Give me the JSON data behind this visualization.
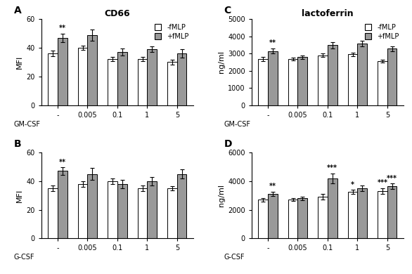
{
  "panel_A": {
    "title": "CD66",
    "ylabel": "MFI",
    "xlabel": "GM-CSF",
    "xlabels": [
      "-",
      "0.005",
      "0.1",
      "1",
      "5"
    ],
    "minus_fMLP": [
      36,
      40,
      32,
      32,
      30
    ],
    "plus_fMLP": [
      47,
      49,
      37,
      39,
      36
    ],
    "minus_err": [
      2,
      1.5,
      1.5,
      1.5,
      1.5
    ],
    "plus_err": [
      3,
      4,
      2.5,
      2,
      3
    ],
    "ylim": [
      0,
      60
    ],
    "yticks": [
      0,
      20,
      40,
      60
    ],
    "sig_plus": [
      "**",
      "",
      "",
      "",
      ""
    ],
    "sig_minus": [
      "",
      "",
      "",
      "",
      ""
    ],
    "panel_label": "A"
  },
  "panel_B": {
    "title": "",
    "ylabel": "MFI",
    "xlabel": "G-CSF",
    "xlabels": [
      "-",
      "0.005",
      "0.1",
      "1",
      "5"
    ],
    "minus_fMLP": [
      35,
      38,
      40,
      35,
      35
    ],
    "plus_fMLP": [
      47,
      45,
      38,
      40,
      45
    ],
    "minus_err": [
      2,
      2,
      2,
      2,
      1.5
    ],
    "plus_err": [
      2.5,
      4,
      3,
      3,
      3
    ],
    "ylim": [
      0,
      60
    ],
    "yticks": [
      0,
      20,
      40,
      60
    ],
    "sig_plus": [
      "**",
      "",
      "",
      "",
      ""
    ],
    "sig_minus": [
      "",
      "",
      "",
      "",
      ""
    ],
    "panel_label": "B"
  },
  "panel_C": {
    "title": "lactoferrin",
    "ylabel": "ng/ml",
    "xlabel": "GM-CSF",
    "xlabels": [
      "-",
      "0.005",
      "0.1",
      "1",
      "5"
    ],
    "minus_fMLP": [
      2700,
      2700,
      2900,
      2950,
      2550
    ],
    "plus_fMLP": [
      3150,
      2800,
      3480,
      3580,
      3280
    ],
    "minus_err": [
      120,
      80,
      100,
      120,
      80
    ],
    "plus_err": [
      150,
      100,
      180,
      150,
      130
    ],
    "ylim": [
      0,
      5000
    ],
    "yticks": [
      0,
      1000,
      2000,
      3000,
      4000,
      5000
    ],
    "sig_plus": [
      "**",
      "",
      "",
      "",
      ""
    ],
    "sig_minus": [
      "",
      "",
      "",
      "",
      ""
    ],
    "panel_label": "C"
  },
  "panel_D": {
    "title": "",
    "ylabel": "ng/ml",
    "xlabel": "G-CSF",
    "xlabels": [
      "-",
      "0.005",
      "0.1",
      "1",
      "5"
    ],
    "minus_fMLP": [
      2700,
      2700,
      2900,
      3250,
      3300
    ],
    "plus_fMLP": [
      3100,
      2800,
      4200,
      3500,
      3650
    ],
    "minus_err": [
      130,
      100,
      180,
      150,
      200
    ],
    "plus_err": [
      160,
      120,
      350,
      200,
      180
    ],
    "ylim": [
      0,
      6000
    ],
    "yticks": [
      0,
      2000,
      4000,
      6000
    ],
    "sig_plus": [
      "**",
      "",
      "***",
      "",
      "***"
    ],
    "sig_minus": [
      "",
      "",
      "",
      "*",
      "***"
    ],
    "panel_label": "D"
  },
  "bar_width": 0.32,
  "color_minus": "#ffffff",
  "color_plus": "#999999",
  "edge_color": "#000000",
  "legend_labels": [
    "-fMLP",
    "+fMLP"
  ]
}
